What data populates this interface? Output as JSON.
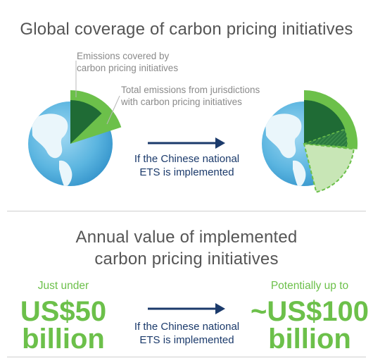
{
  "title_top": "Global coverage of carbon pricing initiatives",
  "callouts": {
    "emissions_covered": [
      "Emissions covered by",
      "carbon pricing initiatives"
    ],
    "total_emissions": [
      "Total emissions from jurisdictions",
      "with carbon pricing initiatives"
    ]
  },
  "arrow_caption": [
    "If the Chinese national",
    "ETS is implemented"
  ],
  "title_bottom": [
    "Annual value of implemented",
    "carbon pricing initiatives"
  ],
  "current_value": {
    "qualifier": "Just under",
    "amount": [
      "US$50",
      "billion"
    ]
  },
  "future_value": {
    "qualifier": "Potentially up to",
    "amount": [
      "~US$100",
      "billion"
    ]
  },
  "colors": {
    "dark_green": "#1f6b35",
    "light_green": "#6cc04a",
    "pale_green": "#c8e6b6",
    "navy": "#1b3a6b",
    "ocean": "#5bb5e0",
    "land": "#eaf6fb"
  },
  "icons": [
    "globe-icon",
    "arrow-right-icon"
  ]
}
